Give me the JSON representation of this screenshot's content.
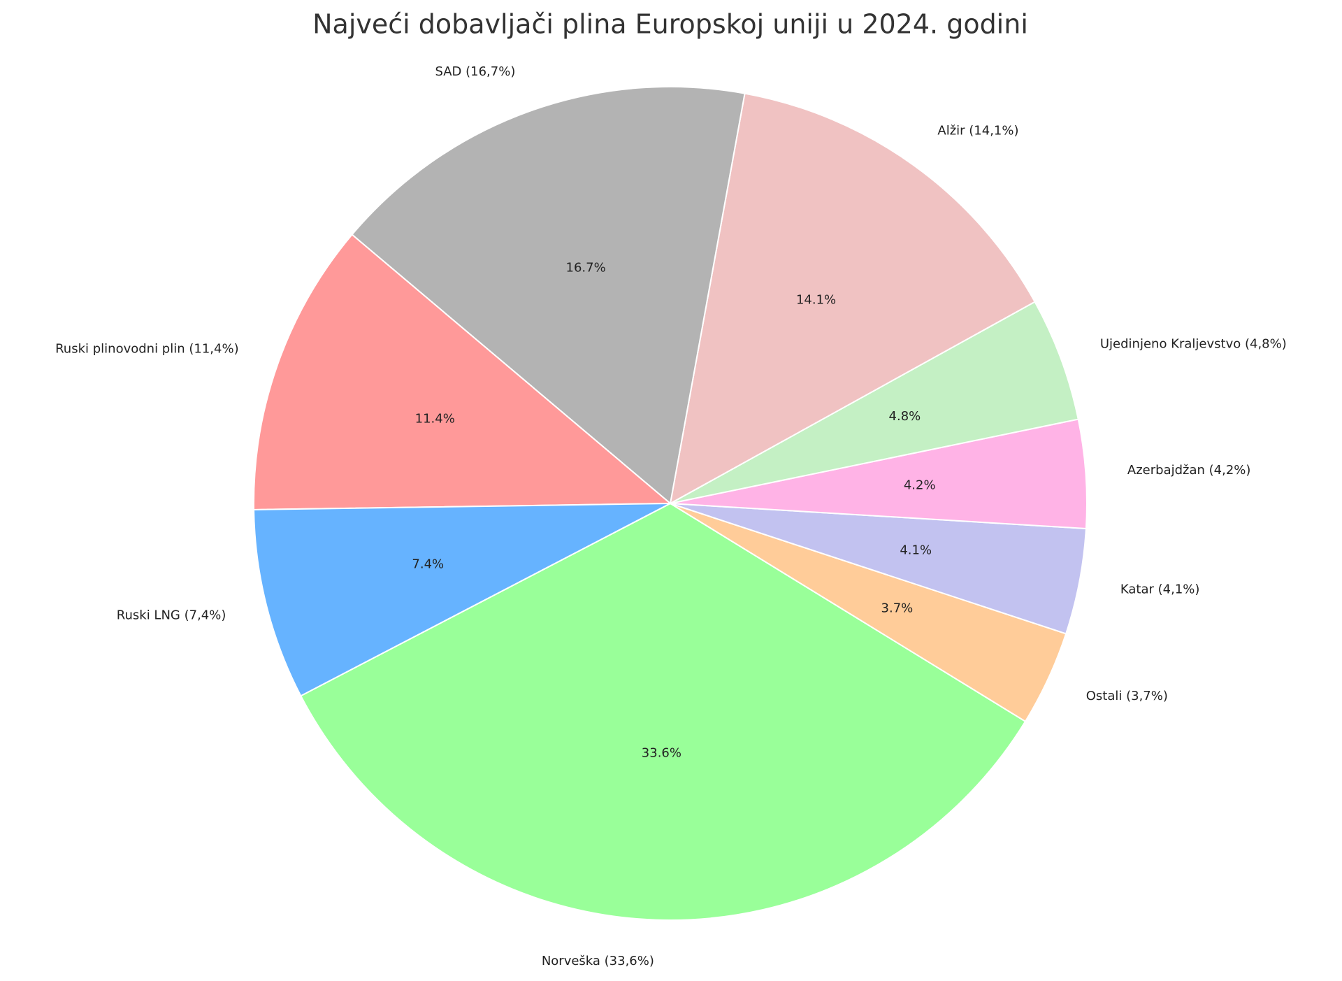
{
  "chart_data": {
    "type": "pie",
    "title": "Najveći dobavljači plina Europskoj uniji u 2024. godini",
    "categories": [
      "Norveška (33,6%)",
      "Ostali (3,7%)",
      "Katar (4,1%)",
      "Azerbajdžan (4,2%)",
      "Ujedinjeno Kraljevstvo (4,8%)",
      "Alžir (14,1%)",
      "SAD (16,7%)",
      "Ruski plinovodni plin (11,4%)",
      "Ruski LNG (7,4%)"
    ],
    "values": [
      33.6,
      3.7,
      4.1,
      4.2,
      4.8,
      14.1,
      16.7,
      11.4,
      7.4
    ],
    "value_labels": [
      "33.6%",
      "3.7%",
      "4.1%",
      "4.2%",
      "4.8%",
      "14.1%",
      "16.7%",
      "11.4%",
      "7.4%"
    ],
    "colors": [
      "#99ff99",
      "#ffcc99",
      "#c2c2f0",
      "#ffb3e6",
      "#c4f0c4",
      "#f0c2c2",
      "#b3b3b3",
      "#ff9999",
      "#66b3ff"
    ]
  }
}
